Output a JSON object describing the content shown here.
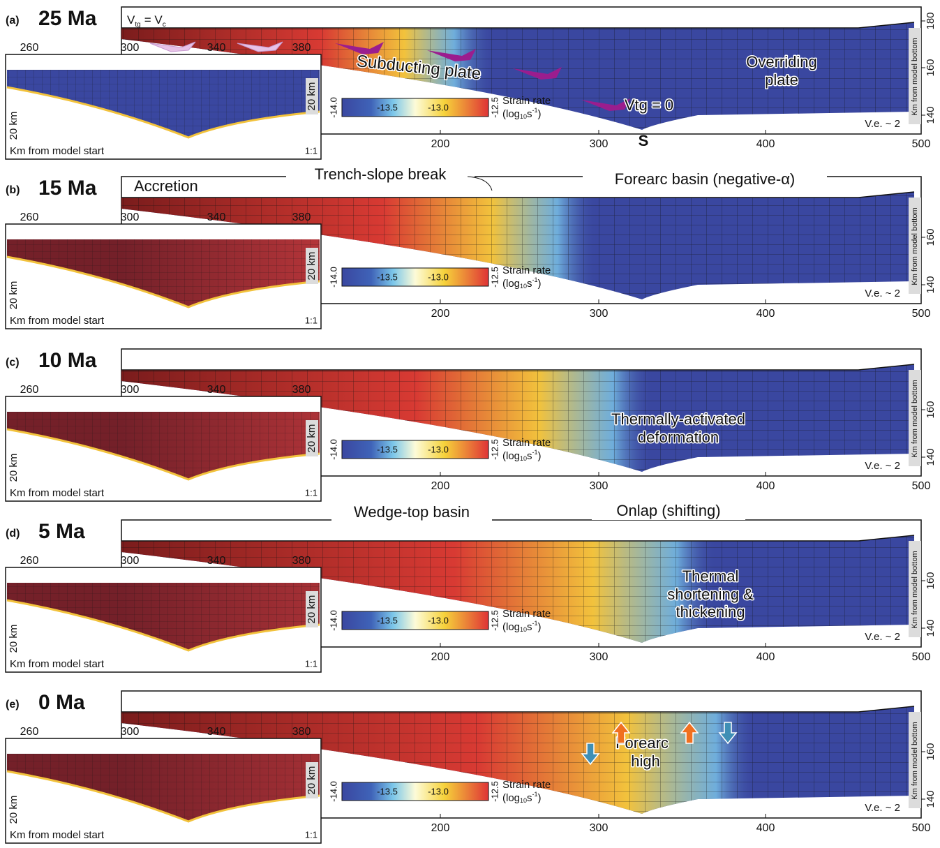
{
  "panels": [
    {
      "label": "(a)",
      "age": "25 Ma",
      "yticks": [
        "180",
        "160",
        "140"
      ],
      "velocity_label": {
        "v1": "V",
        "s1": "tg",
        "mid": "= V",
        "s2": "c"
      },
      "notes": [
        "Subducting plate",
        "Overriding",
        "plate",
        "Vtg = 0",
        "S"
      ]
    },
    {
      "label": "(b)",
      "age": "15 Ma",
      "yticks": [
        "160",
        "140"
      ],
      "notes": [
        "Accretion",
        "Trench-slope break",
        "Forearc basin (negative-α)"
      ]
    },
    {
      "label": "(c)",
      "age": "10 Ma",
      "yticks": [
        "160",
        "140"
      ],
      "notes": [
        "Thermally-activated",
        "deformation"
      ]
    },
    {
      "label": "(d)",
      "age": "5 Ma",
      "yticks": [
        "160",
        "140"
      ],
      "notes": [
        "Wedge-top basin",
        "Onlap (shifting)",
        "Thermal",
        "shortening &",
        "thickening"
      ]
    },
    {
      "label": "(e)",
      "age": "0 Ma",
      "yticks": [
        "160",
        "140"
      ],
      "notes": [
        "Forearc",
        "high"
      ]
    }
  ],
  "main_xticks": [
    "200",
    "300",
    "400",
    "500"
  ],
  "inset_xticks": [
    "260",
    "300",
    "340",
    "380"
  ],
  "main_y_label": "Km from model bottom",
  "vertical_exaggeration": "V.e. ~ 2",
  "inset_x_label": "Km from model start",
  "inset_scale": "1:1",
  "inset_y_label": "20 km",
  "colorbar": {
    "ticks": [
      "-14.0",
      "-13.5",
      "-13.0",
      "-12.5"
    ],
    "title": "Strain rate",
    "unit": {
      "open": "(log",
      "sub": "10",
      "base": "s",
      "sup": "-1",
      "close": ")"
    }
  }
}
